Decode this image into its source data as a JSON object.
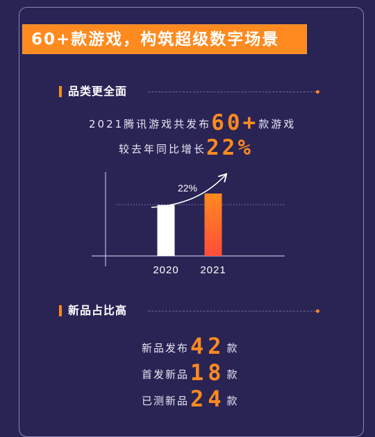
{
  "banner": {
    "title": "60+款游戏，构筑超级数字场景"
  },
  "section1": {
    "title": "品类更全面",
    "line1_pre": "2021腾讯游戏共发布",
    "line1_num": "60+",
    "line1_post": "款游戏",
    "line2_pre": "较去年同比增长",
    "line2_num": "22%"
  },
  "chart_data": {
    "type": "bar",
    "categories": [
      "2020",
      "2021"
    ],
    "values": [
      49,
      60
    ],
    "ylim": [
      0,
      100
    ],
    "annotation": "22%",
    "colors": [
      "#ffffff",
      "#ff6a2a"
    ],
    "grid": false
  },
  "section2": {
    "title": "新品占比高",
    "rows": [
      {
        "label": "新品发布",
        "value": "42",
        "unit": "款"
      },
      {
        "label": "首发新品",
        "value": "18",
        "unit": "款"
      },
      {
        "label": "已测新品",
        "value": "24",
        "unit": "款"
      }
    ]
  }
}
